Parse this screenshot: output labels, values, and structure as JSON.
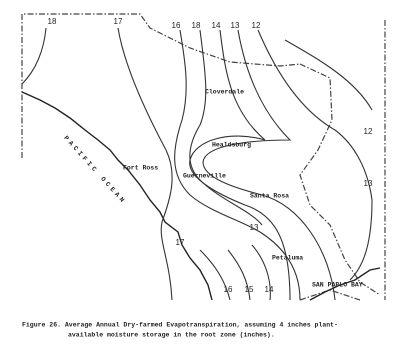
{
  "contour_labels": [
    "18",
    "17",
    "16",
    "18",
    "14",
    "13",
    "12",
    "12",
    "13",
    "13",
    "17",
    "16",
    "15",
    "14"
  ],
  "places": [
    "Cloverdale",
    "Healdsburg",
    "Guerneville",
    "Santa Rosa",
    "Fort Ross",
    "Petaluma",
    "SAN PABLO BAY",
    "PACIFIC OCEAN"
  ],
  "caption": [
    "Figure 26.  Average Annual Dry-farmed Evapotranspiration, assuming 4 inches plant-",
    "available moisture storage in the root zone (inches)."
  ]
}
